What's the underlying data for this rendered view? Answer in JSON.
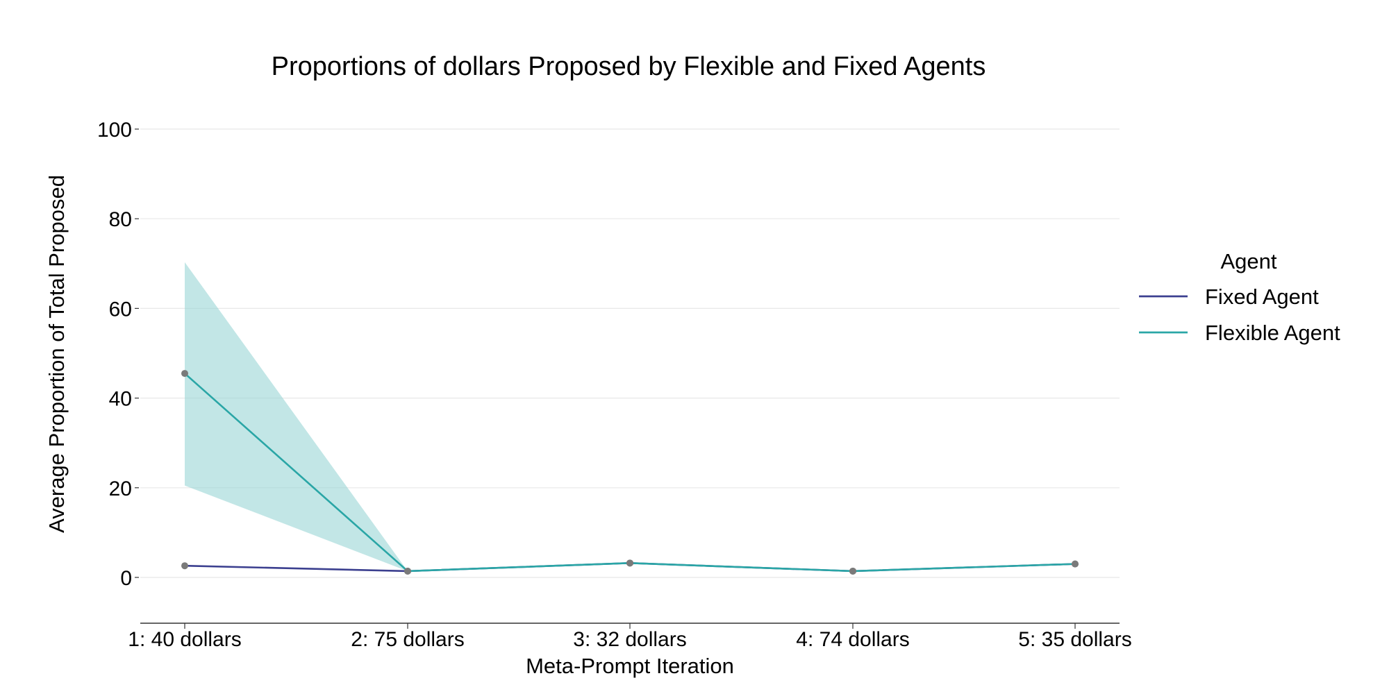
{
  "chart_data": {
    "type": "line",
    "title": "Proportions of dollars Proposed by Flexible and Fixed Agents",
    "xlabel": "Meta-Prompt Iteration",
    "ylabel": "Average Proportion of Total Proposed",
    "categories": [
      "1: 40 dollars",
      "2: 75 dollars",
      "3: 32 dollars",
      "4: 74 dollars",
      "5: 35 dollars"
    ],
    "ylim": [
      -10,
      100
    ],
    "yticks": [
      0,
      20,
      40,
      60,
      80,
      100
    ],
    "grid": true,
    "legend": {
      "title": "Agent",
      "placement": "right"
    },
    "series": [
      {
        "name": "Fixed Agent",
        "color": "#3b3f8f",
        "values": [
          2.6,
          1.4,
          3.2,
          1.4,
          3.0
        ],
        "ci_lower": [
          2.6,
          1.4,
          3.2,
          1.4,
          3.0
        ],
        "ci_upper": [
          2.6,
          1.4,
          3.2,
          1.4,
          3.0
        ]
      },
      {
        "name": "Flexible Agent",
        "color": "#2aa6a6",
        "band_color": "#8fd1d1",
        "values": [
          45.5,
          1.4,
          3.2,
          1.4,
          3.0
        ],
        "ci_lower": [
          20.5,
          1.4,
          3.2,
          1.4,
          3.0
        ],
        "ci_upper": [
          70.3,
          1.4,
          3.2,
          1.4,
          3.0
        ]
      }
    ],
    "marker_color": "#7a7a7a"
  }
}
